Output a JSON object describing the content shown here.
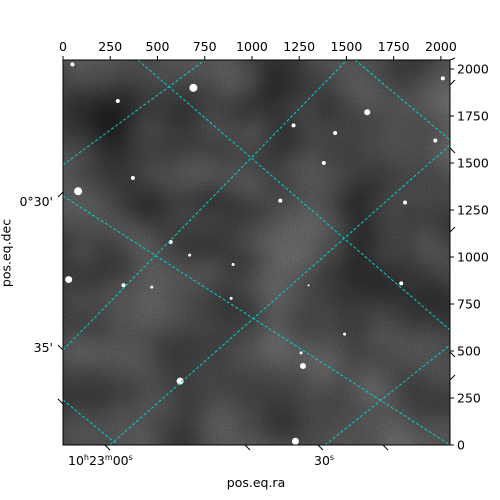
{
  "chart_data": {
    "type": "image",
    "xlabel": "pos.eq.ra",
    "ylabel": "pos.eq.dec",
    "pixel_axes": {
      "x": {
        "range": [
          0,
          2048
        ],
        "ticks": [
          0,
          250,
          500,
          750,
          1000,
          1250,
          1500,
          1750,
          2000
        ],
        "tick_labels": [
          "0",
          "250",
          "500",
          "750",
          "1000",
          "1250",
          "1500",
          "1750",
          "2000"
        ]
      },
      "y": {
        "range": [
          0,
          2048
        ],
        "ticks": [
          0,
          250,
          500,
          750,
          1000,
          1250,
          1500,
          1750,
          2000
        ],
        "tick_labels": [
          "0",
          "250",
          "500",
          "750",
          "1000",
          "1250",
          "1500",
          "1750",
          "2000"
        ]
      }
    },
    "ra_tick_labels": [
      {
        "hours": "10",
        "minutes": "23",
        "seconds": "00"
      },
      {
        "seconds": "30"
      }
    ],
    "ra_tick_suffix": "s",
    "dec_tick_labels": [
      "0°30'",
      "35'"
    ],
    "grid_color": "#00d0d0",
    "grid": true,
    "stars": [
      {
        "x": 50,
        "y": 2025,
        "r": 2
      },
      {
        "x": 290,
        "y": 1830,
        "r": 2
      },
      {
        "x": 690,
        "y": 1900,
        "r": 4
      },
      {
        "x": 1610,
        "y": 1770,
        "r": 3
      },
      {
        "x": 1440,
        "y": 1660,
        "r": 2
      },
      {
        "x": 1220,
        "y": 1700,
        "r": 2
      },
      {
        "x": 1380,
        "y": 1500,
        "r": 2
      },
      {
        "x": 370,
        "y": 1420,
        "r": 2
      },
      {
        "x": 80,
        "y": 1350,
        "r": 4
      },
      {
        "x": 2010,
        "y": 1950,
        "r": 2
      },
      {
        "x": 1810,
        "y": 1290,
        "r": 2
      },
      {
        "x": 1150,
        "y": 1300,
        "r": 2
      },
      {
        "x": 570,
        "y": 1080,
        "r": 2
      },
      {
        "x": 670,
        "y": 1010,
        "r": 1.5
      },
      {
        "x": 900,
        "y": 960,
        "r": 1.5
      },
      {
        "x": 30,
        "y": 880,
        "r": 3.5
      },
      {
        "x": 320,
        "y": 850,
        "r": 2
      },
      {
        "x": 470,
        "y": 840,
        "r": 1.5
      },
      {
        "x": 1790,
        "y": 860,
        "r": 2
      },
      {
        "x": 890,
        "y": 780,
        "r": 1.5
      },
      {
        "x": 1270,
        "y": 420,
        "r": 3
      },
      {
        "x": 1260,
        "y": 490,
        "r": 1.5
      },
      {
        "x": 620,
        "y": 340,
        "r": 3.5
      },
      {
        "x": 1230,
        "y": 20,
        "r": 3.5
      },
      {
        "x": 1490,
        "y": 590,
        "r": 1.5
      },
      {
        "x": 1970,
        "y": 1620,
        "r": 2
      },
      {
        "x": 1300,
        "y": 850,
        "r": 1
      }
    ]
  }
}
